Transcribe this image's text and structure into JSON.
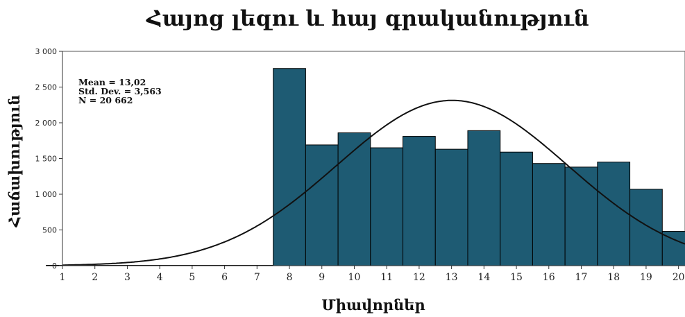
{
  "chart_data": {
    "type": "bar",
    "title": "Հայոց լեզու և հայ գրականություն",
    "xlabel": "Միավորներ",
    "ylabel": "Հաճախություն",
    "x_ticks": [
      "1",
      "2",
      "3",
      "4",
      "5",
      "6",
      "7",
      "8",
      "9",
      "10",
      "11",
      "12",
      "13",
      "14",
      "15",
      "16",
      "17",
      "18",
      "19",
      "20"
    ],
    "xlim": [
      1,
      20.2
    ],
    "ylim": [
      0,
      3000
    ],
    "y_ticks": [
      0,
      500,
      1000,
      1500,
      2000,
      2500,
      3000
    ],
    "y_tick_labels": [
      "0",
      "500",
      "1 000",
      "1 500",
      "2 000",
      "2 500",
      "3 000"
    ],
    "categories": [
      "1",
      "2",
      "3",
      "4",
      "5",
      "6",
      "7",
      "8",
      "9",
      "10",
      "11",
      "12",
      "13",
      "14",
      "15",
      "16",
      "17",
      "18",
      "19",
      "20"
    ],
    "values": [
      5,
      5,
      5,
      5,
      5,
      5,
      5,
      2760,
      1690,
      1860,
      1650,
      1810,
      1630,
      1890,
      1590,
      1430,
      1380,
      1450,
      1070,
      480
    ],
    "bar_color": "#1e5b73",
    "normal_curve": {
      "mean": 13.02,
      "std": 3.563,
      "n": 20662,
      "bin_width": 1
    },
    "stats_box": [
      "Mean = 13,02",
      "Std. Dev. = 3,563",
      "N = 20 662"
    ],
    "grid": false
  }
}
